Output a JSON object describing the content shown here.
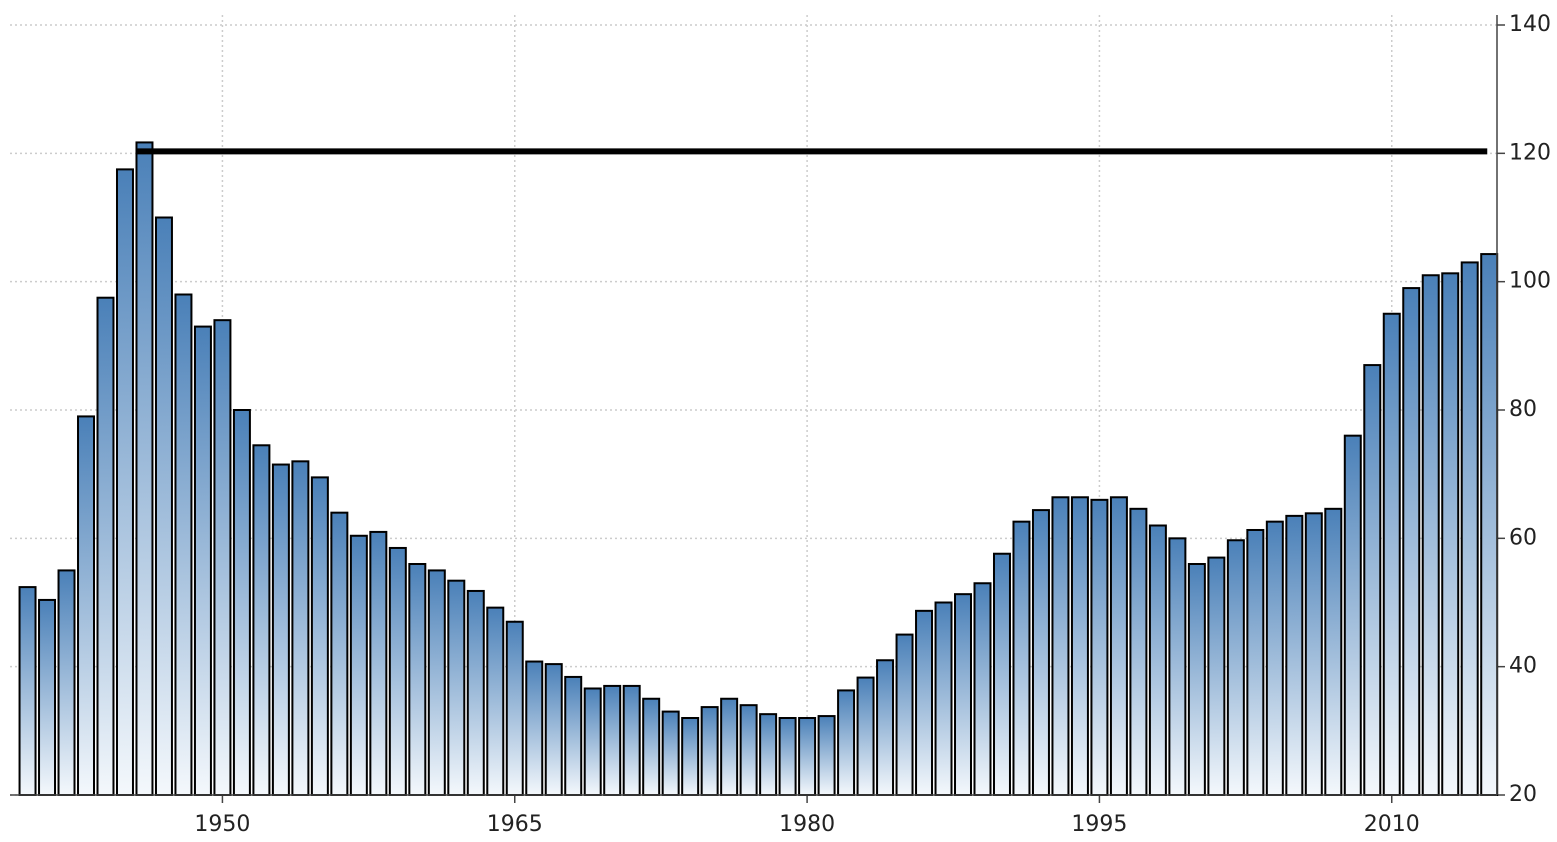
{
  "chart_data": {
    "type": "bar",
    "x": [
      1940,
      1941,
      1942,
      1943,
      1944,
      1945,
      1946,
      1947,
      1948,
      1949,
      1950,
      1951,
      1952,
      1953,
      1954,
      1955,
      1956,
      1957,
      1958,
      1959,
      1960,
      1961,
      1962,
      1963,
      1964,
      1965,
      1966,
      1967,
      1968,
      1969,
      1970,
      1971,
      1972,
      1973,
      1974,
      1975,
      1976,
      1977,
      1978,
      1979,
      1980,
      1981,
      1982,
      1983,
      1984,
      1985,
      1986,
      1987,
      1988,
      1989,
      1990,
      1991,
      1992,
      1993,
      1994,
      1995,
      1996,
      1997,
      1998,
      1999,
      2000,
      2001,
      2002,
      2003,
      2004,
      2005,
      2006,
      2007,
      2008,
      2009,
      2010,
      2011,
      2012,
      2013,
      2014,
      2015
    ],
    "values": [
      52.4,
      50.4,
      55,
      79,
      97.5,
      117.5,
      121.7,
      110,
      98,
      93,
      94,
      80,
      74.5,
      71.5,
      72,
      69.5,
      64,
      60.4,
      61,
      58.5,
      56,
      55,
      53.4,
      51.8,
      49.2,
      47,
      40.8,
      40.4,
      38.4,
      36.6,
      37,
      37,
      35,
      33,
      32,
      33.7,
      35,
      34,
      32.6,
      32,
      32,
      32.3,
      36.3,
      38.3,
      41,
      45,
      48.7,
      50,
      51.3,
      53,
      57.6,
      62.6,
      64.4,
      66.4,
      66.4,
      66,
      66.4,
      64.6,
      62,
      60,
      56,
      57,
      59.7,
      61.3,
      62.6,
      63.5,
      63.9,
      64.6,
      76,
      87,
      95,
      99,
      101,
      101.3,
      103,
      104.3
    ],
    "color": "#4a80b8",
    "reference_line": {
      "value": 120.3,
      "x": [
        1945.6,
        2014.9
      ],
      "color": "#000000"
    },
    "xlim": [
      1939.1,
      2015.4
    ],
    "xticks": [
      1950,
      1965,
      1980,
      1995,
      2010
    ],
    "ylim": [
      20,
      140
    ],
    "yticks": [
      20,
      40,
      60,
      80,
      100,
      120,
      140
    ],
    "grid": true
  }
}
